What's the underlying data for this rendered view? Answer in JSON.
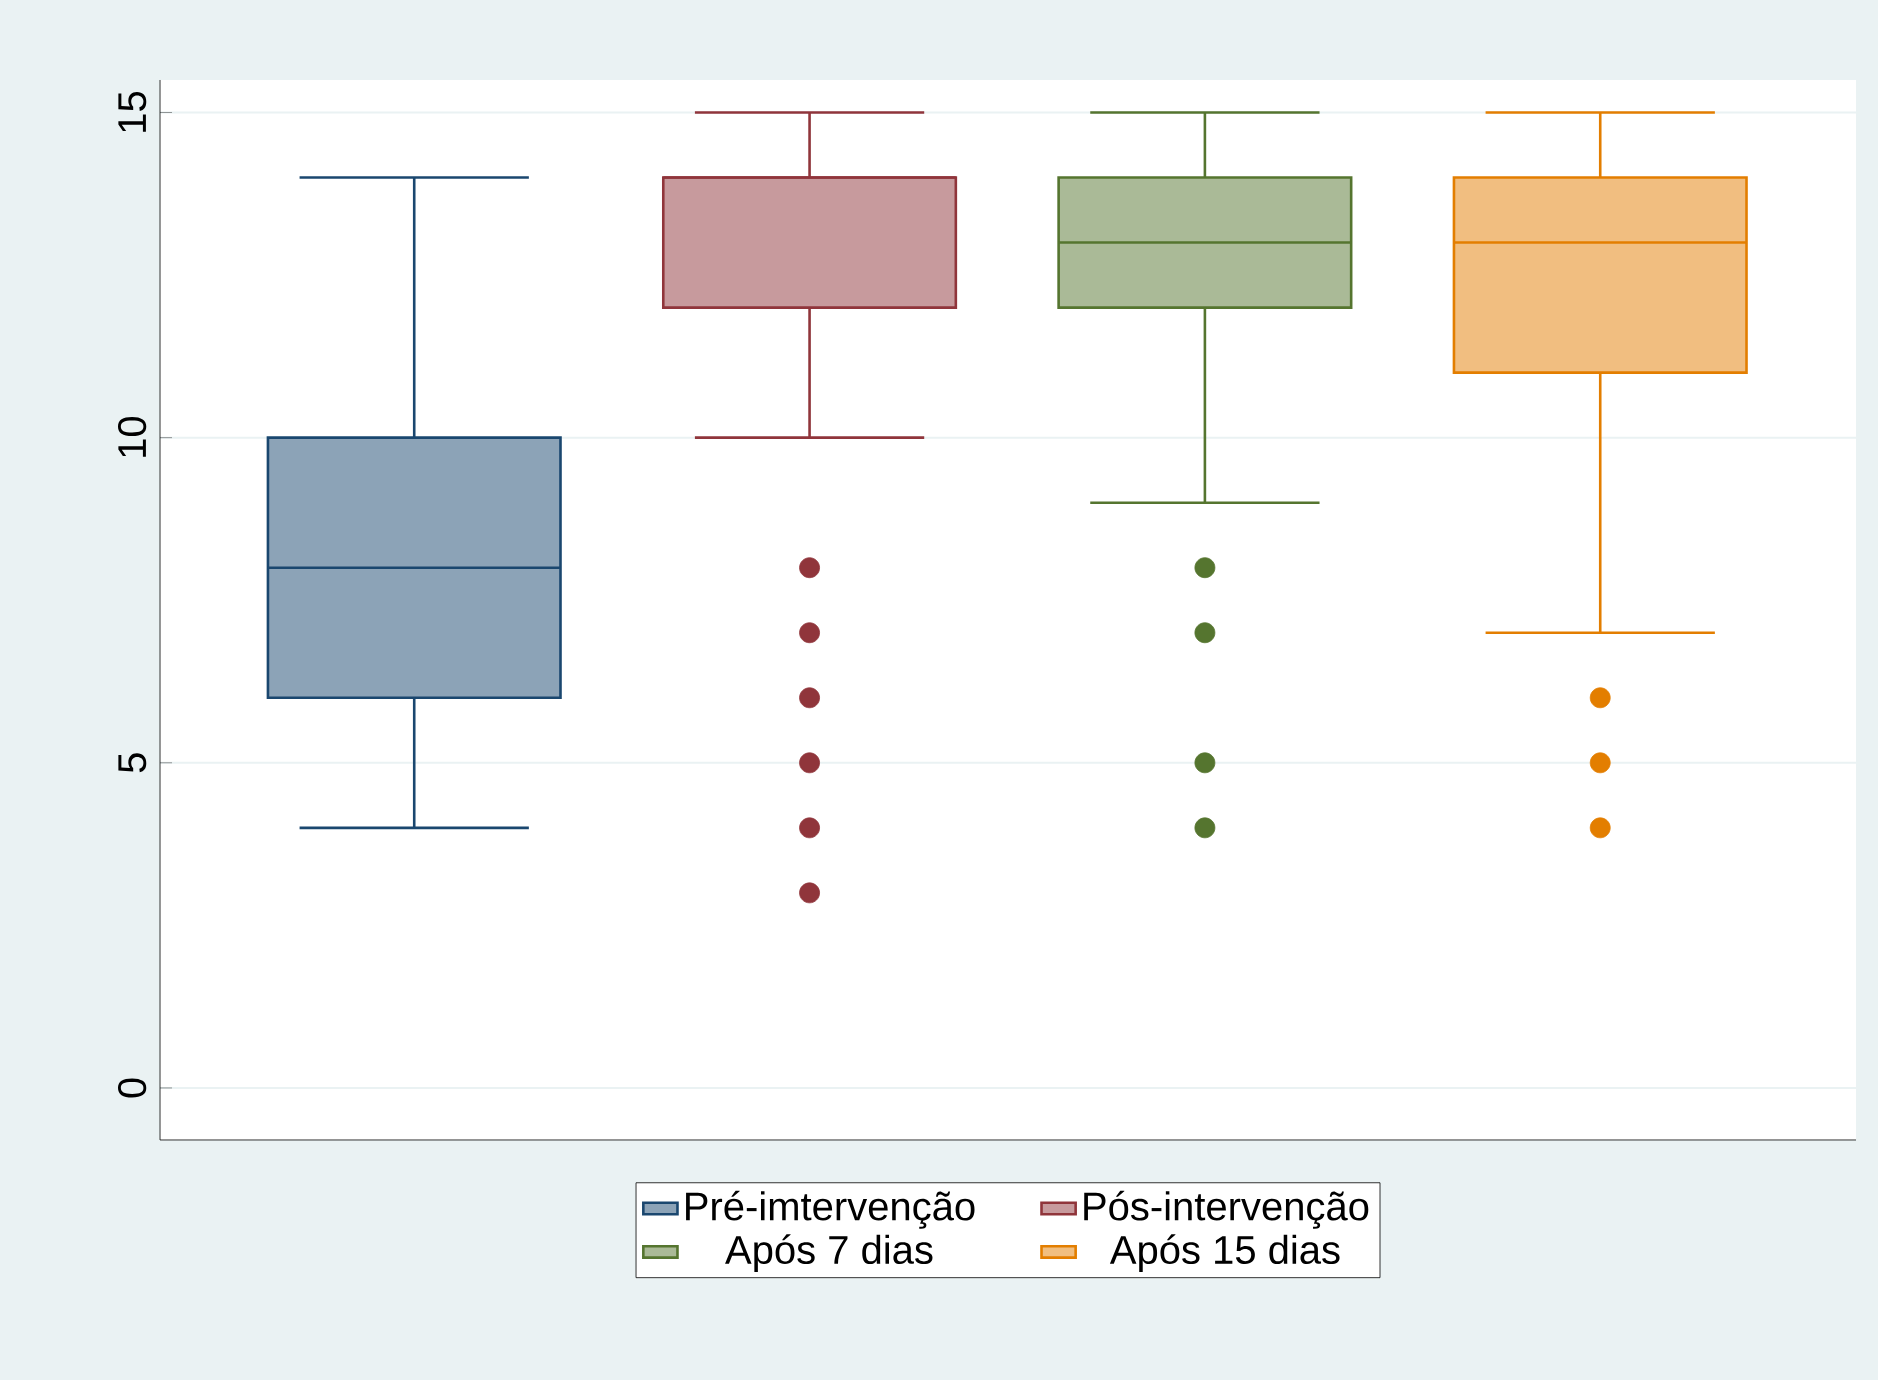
{
  "chart_data": {
    "type": "box",
    "categories": [
      null
    ],
    "series": [
      {
        "name": "Pré-imtervenção",
        "color": "#1a476f",
        "boxes": [
          {
            "low": 4,
            "q1": 6,
            "median": 8,
            "q3": 10,
            "high": 14
          }
        ]
      },
      {
        "name": "Pós-intervenção",
        "color": "#90353b",
        "boxes": [
          {
            "low": 10,
            "q1": 12,
            "median": 14,
            "q3": 14,
            "high": 15,
            "outliers": [
              8,
              7,
              6,
              5,
              4,
              3
            ]
          }
        ]
      },
      {
        "name": "Após 7 dias",
        "color": "#55752f",
        "boxes": [
          {
            "low": 9,
            "q1": 12,
            "median": 13,
            "q3": 14,
            "high": 15,
            "outliers": [
              8,
              7,
              5,
              4
            ]
          }
        ]
      },
      {
        "name": "Após 15 dias",
        "color": "#e37e00",
        "boxes": [
          {
            "low": 7,
            "q1": 11,
            "median": 13,
            "q3": 14,
            "high": 15,
            "outliers": [
              6,
              5,
              4
            ]
          }
        ]
      }
    ],
    "ylim": [
      -0.8,
      15.5
    ],
    "yticks": [
      0,
      5,
      10,
      15
    ],
    "grid": "y",
    "legend": "bottom",
    "marker": "circle",
    "tick_labels": "y"
  }
}
